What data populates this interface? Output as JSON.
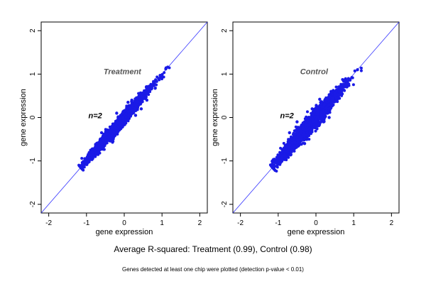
{
  "colors": {
    "points": "#1a1ae6",
    "diagonal": "#3333ff",
    "frame": "#000000",
    "panel_title": "#555555"
  },
  "chart_data": [
    {
      "type": "scatter",
      "title": "Treatment",
      "annotation": "n=2",
      "xlabel": "gene expression",
      "ylabel": "gene expression",
      "xlim": [
        -2.2,
        2.2
      ],
      "ylim": [
        -2.2,
        2.2
      ],
      "x_ticks": [
        -2,
        -1,
        0,
        1,
        2
      ],
      "y_ticks": [
        -2,
        -1,
        0,
        1,
        2
      ],
      "x_tick_labels": [
        "-2",
        "-1",
        "0",
        "1",
        "2"
      ],
      "y_tick_labels": [
        "-2",
        "-1",
        "0",
        "1",
        "2"
      ],
      "reference_line": "y = x",
      "grid": false,
      "points": [
        [
          -1.13,
          -1.1
        ],
        [
          -1.0,
          -0.98
        ],
        [
          -0.85,
          -0.8
        ],
        [
          -0.7,
          -0.72
        ],
        [
          -0.55,
          -0.5
        ],
        [
          -0.4,
          -0.42
        ],
        [
          -0.25,
          -0.22
        ],
        [
          -0.1,
          -0.12
        ],
        [
          0.05,
          0.08
        ],
        [
          0.2,
          0.18
        ],
        [
          0.35,
          0.38
        ],
        [
          0.5,
          0.47
        ],
        [
          0.65,
          0.66
        ],
        [
          0.8,
          0.78
        ],
        [
          0.95,
          0.97
        ],
        [
          1.1,
          1.12
        ],
        [
          1.15,
          1.16
        ],
        [
          -0.6,
          -0.35
        ],
        [
          -0.3,
          -0.55
        ],
        [
          0.1,
          0.35
        ],
        [
          0.3,
          0.05
        ],
        [
          0.45,
          0.2
        ],
        [
          -0.2,
          0.1
        ],
        [
          0.2,
          0.4
        ],
        [
          0.6,
          0.4
        ]
      ]
    },
    {
      "type": "scatter",
      "title": "Control",
      "annotation": "n=2",
      "xlabel": "gene expression",
      "ylabel": "gene expression",
      "xlim": [
        -2.2,
        2.2
      ],
      "ylim": [
        -2.2,
        2.2
      ],
      "x_ticks": [
        -2,
        -1,
        0,
        1,
        2
      ],
      "y_ticks": [
        -2,
        -1,
        0,
        1,
        2
      ],
      "x_tick_labels": [
        "-2",
        "-1",
        "0",
        "1",
        "2"
      ],
      "y_tick_labels": [
        "-2",
        "-1",
        "0",
        "1",
        "2"
      ],
      "reference_line": "y = x",
      "grid": false,
      "points": [
        [
          -1.15,
          -1.12
        ],
        [
          -1.0,
          -0.95
        ],
        [
          -0.85,
          -0.88
        ],
        [
          -0.7,
          -0.65
        ],
        [
          -0.55,
          -0.58
        ],
        [
          -0.4,
          -0.35
        ],
        [
          -0.25,
          -0.28
        ],
        [
          -0.1,
          -0.05
        ],
        [
          0.05,
          0.02
        ],
        [
          0.2,
          0.25
        ],
        [
          0.35,
          0.3
        ],
        [
          0.5,
          0.55
        ],
        [
          0.65,
          0.62
        ],
        [
          0.8,
          0.85
        ],
        [
          0.95,
          0.92
        ],
        [
          1.1,
          1.1
        ],
        [
          -0.7,
          -0.35
        ],
        [
          -0.3,
          -0.6
        ],
        [
          0.1,
          0.42
        ],
        [
          0.35,
          0.0
        ],
        [
          -0.1,
          0.2
        ],
        [
          0.4,
          0.6
        ],
        [
          -0.5,
          -0.1
        ],
        [
          0.2,
          -0.1
        ]
      ]
    }
  ],
  "caption": {
    "main": "Average R-squared: Treatment (0.99), Control (0.98)",
    "sub": "Genes detected at least one chip were plotted (detection p-value < 0.01)"
  }
}
